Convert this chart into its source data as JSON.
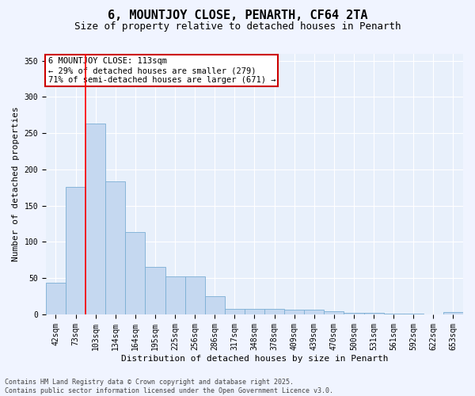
{
  "title1": "6, MOUNTJOY CLOSE, PENARTH, CF64 2TA",
  "title2": "Size of property relative to detached houses in Penarth",
  "xlabel": "Distribution of detached houses by size in Penarth",
  "ylabel": "Number of detached properties",
  "categories": [
    "42sqm",
    "73sqm",
    "103sqm",
    "134sqm",
    "164sqm",
    "195sqm",
    "225sqm",
    "256sqm",
    "286sqm",
    "317sqm",
    "348sqm",
    "378sqm",
    "409sqm",
    "439sqm",
    "470sqm",
    "500sqm",
    "531sqm",
    "561sqm",
    "592sqm",
    "622sqm",
    "653sqm"
  ],
  "values": [
    44,
    176,
    263,
    184,
    114,
    65,
    52,
    52,
    25,
    8,
    8,
    8,
    7,
    7,
    4,
    2,
    2,
    1,
    1,
    0,
    3
  ],
  "bar_color": "#c5d8f0",
  "bar_edge_color": "#7aaed4",
  "bar_edge_width": 0.6,
  "background_color": "#e8f0fb",
  "grid_color": "#ffffff",
  "red_line_x": 1.5,
  "annotation_text": "6 MOUNTJOY CLOSE: 113sqm\n← 29% of detached houses are smaller (279)\n71% of semi-detached houses are larger (671) →",
  "annotation_box_color": "#ffffff",
  "annotation_box_edge_color": "#cc0000",
  "ylim": [
    0,
    360
  ],
  "yticks": [
    0,
    50,
    100,
    150,
    200,
    250,
    300,
    350
  ],
  "footnote": "Contains HM Land Registry data © Crown copyright and database right 2025.\nContains public sector information licensed under the Open Government Licence v3.0.",
  "title1_fontsize": 11,
  "title2_fontsize": 9,
  "axis_label_fontsize": 8,
  "tick_fontsize": 7,
  "annotation_fontsize": 7.5,
  "footnote_fontsize": 6,
  "fig_facecolor": "#f0f4ff"
}
